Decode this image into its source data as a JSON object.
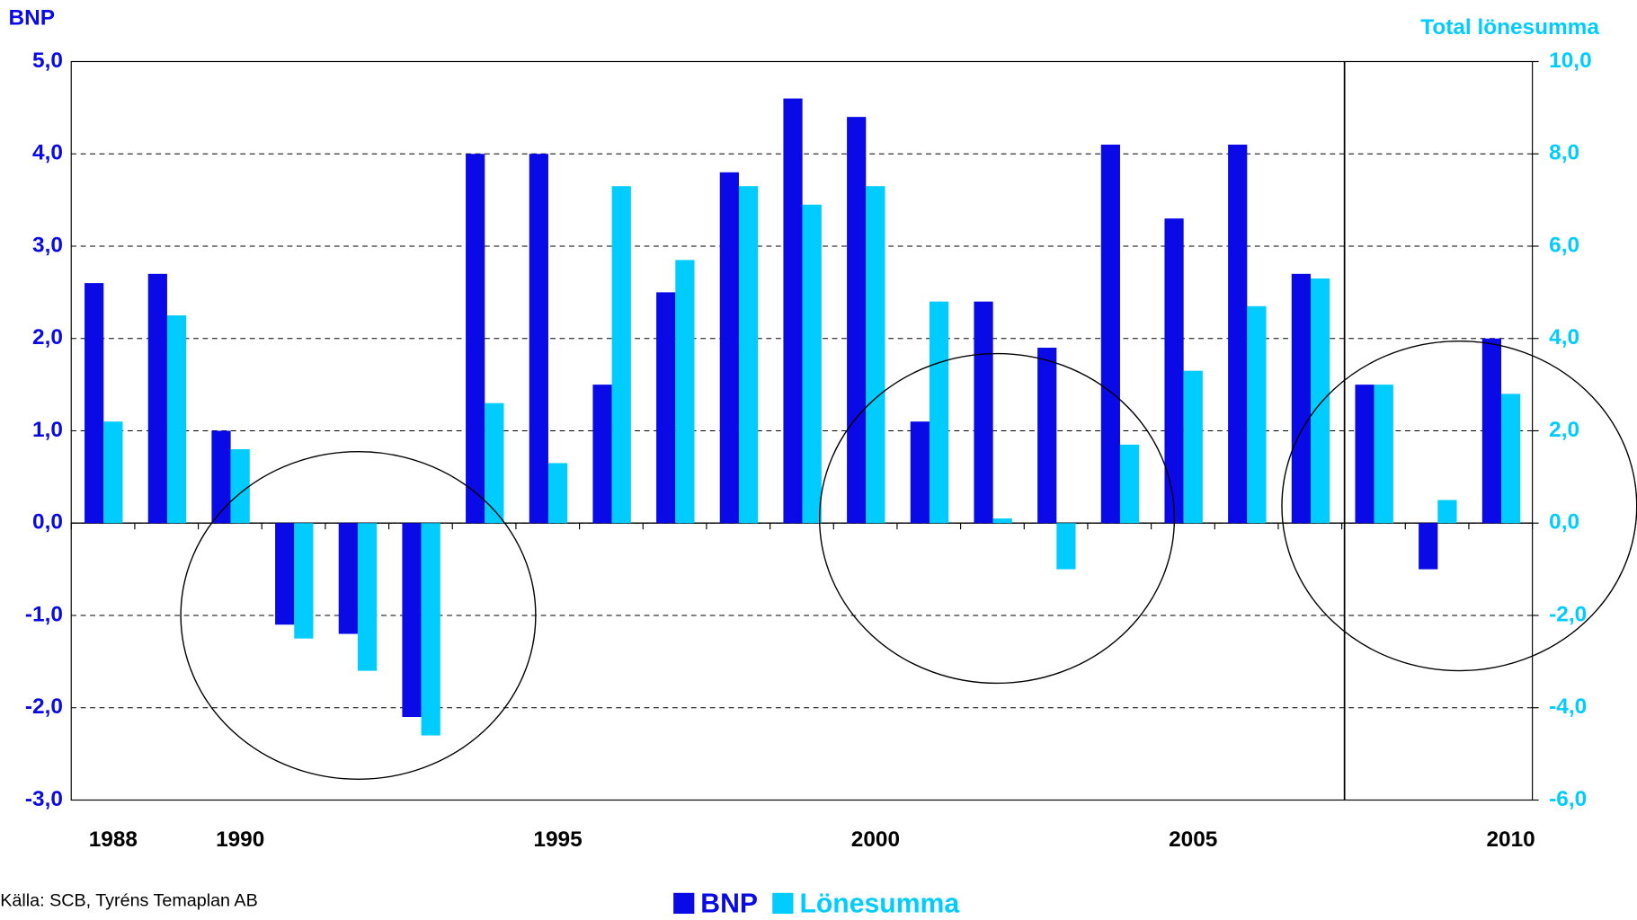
{
  "chart_data": {
    "type": "bar",
    "y_axis_title": "BNP",
    "y2_axis_title": "Total lönesumma",
    "source": "Källa: SCB, Tyréns Temaplan AB",
    "categories": [
      "1988",
      null,
      "1990",
      null,
      null,
      null,
      null,
      "1995",
      null,
      null,
      null,
      null,
      "2000",
      null,
      null,
      null,
      null,
      "2005",
      null,
      null,
      null,
      null,
      "2010"
    ],
    "series": [
      {
        "name": "BNP",
        "color": "#0a0ae6",
        "values": [
          2.6,
          2.7,
          1.0,
          -1.1,
          -1.2,
          -2.1,
          4.0,
          4.0,
          1.5,
          2.5,
          3.8,
          4.6,
          4.4,
          1.1,
          2.4,
          1.9,
          4.1,
          3.3,
          4.1,
          2.7,
          1.5,
          -0.5,
          2.0
        ]
      },
      {
        "name": "Lönesumma",
        "color": "#00ccff",
        "axis": "y2",
        "values": [
          2.2,
          4.5,
          1.6,
          -2.5,
          -3.2,
          -4.6,
          2.6,
          1.3,
          7.3,
          5.7,
          7.3,
          6.9,
          7.3,
          4.8,
          0.1,
          -1.0,
          1.7,
          3.3,
          4.7,
          5.3,
          3.0,
          0.5,
          2.8
        ]
      }
    ],
    "ylim": [
      -3,
      5
    ],
    "yticks": [
      {
        "value": -3,
        "label": "-3,0"
      },
      {
        "value": -2,
        "label": "-2,0"
      },
      {
        "value": -1,
        "label": "-1,0"
      },
      {
        "value": 0,
        "label": "0,0"
      },
      {
        "value": 1,
        "label": "1,0"
      },
      {
        "value": 2,
        "label": "2,0"
      },
      {
        "value": 3,
        "label": "3,0"
      },
      {
        "value": 4,
        "label": "4,0"
      },
      {
        "value": 5,
        "label": "5,0"
      }
    ],
    "y2lim": [
      -6,
      10
    ],
    "y2ticks": [
      {
        "value": -6,
        "label": "-6,0"
      },
      {
        "value": -4,
        "label": "-4,0"
      },
      {
        "value": -2,
        "label": "-2,0"
      },
      {
        "value": 0,
        "label": "0,0"
      },
      {
        "value": 2,
        "label": "2,0"
      },
      {
        "value": 4,
        "label": "4,0"
      },
      {
        "value": 6,
        "label": "6,0"
      },
      {
        "value": 8,
        "label": "8,0"
      },
      {
        "value": 10,
        "label": "10,0"
      }
    ],
    "grid": true,
    "legend": "bottom"
  }
}
